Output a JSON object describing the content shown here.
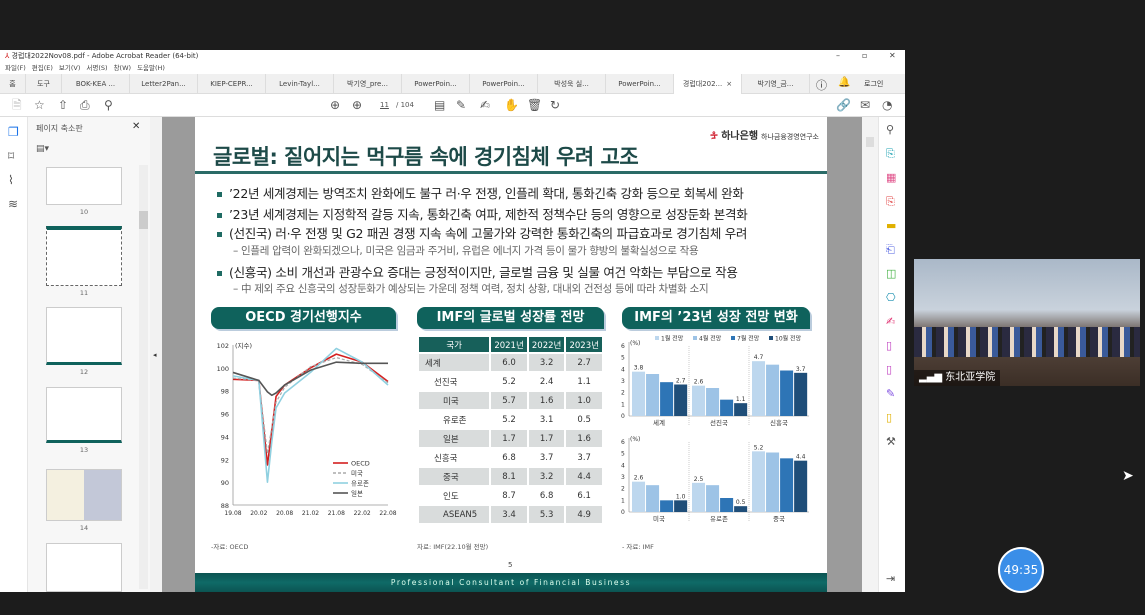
{
  "window": {
    "title": "경럽대2022Nov08.pdf - Adobe Acrobat Reader (64-bit)",
    "controls": [
      "–",
      "▫",
      "✕"
    ]
  },
  "menu": [
    "파일(F)",
    "편집(E)",
    "보기(V)",
    "서명(S)",
    "창(W)",
    "도움말(H)"
  ],
  "tabs": {
    "home": "홈",
    "tools": "도구",
    "docs": [
      "BOK-KEA ...",
      "Letter2Pan...",
      "KIEP-CEPR...",
      "Levin-Tayl...",
      "박기영_pre...",
      "PowerPoin...",
      "PowerPoin...",
      "박성욱 실...",
      "PowerPoin...",
      "경럽대202...",
      "박기영_금..."
    ],
    "active_index": 9,
    "close": "×",
    "login": "로그인"
  },
  "toolbar": {
    "current_page": "11",
    "total_pages": "/ 104"
  },
  "thumbnails": {
    "title": "페이지 축소판",
    "close": "✕",
    "pages": [
      "10",
      "11",
      "12",
      "13",
      "14"
    ],
    "selected": "11"
  },
  "slide": {
    "logo": "하나은행",
    "logo_sub": "하나금융경영연구소",
    "title": "글로벌: 짙어지는 먹구름 속에 경기침체 우려 고조",
    "bullets": [
      {
        "text": "’22년 세계경제는 방역조치 완화에도 불구 러·우 전쟁, 인플레 확대, 통화긴축 강화 등으로 회복세 완화",
        "sub": false
      },
      {
        "text": "’23년 세계경제는 지정학적 갈등 지속, 통화긴축 여파, 제한적 정책수단 등의 영향으로 성장둔화 본격화",
        "sub": false
      },
      {
        "text": "(선진국) 러·우 전쟁 및 G2 패권 경쟁 지속 속에 고물가와 강력한 통화긴축의 파급효과로 경기침체 우려",
        "sub": false
      },
      {
        "text": "– 인플레 압력이 완화되겠으나, 미국은 임금과 주거비, 유럽은 에너지 가격 등이 물가 향방의 불확실성으로 작용",
        "sub": true
      },
      {
        "text": "(신흥국) 소비 개선과 관광수요 증대는 긍정적이지만, 글로벌 금융 및 실물 여건 악화는 부담으로 작용",
        "sub": false
      },
      {
        "text": "– 中 제외 주요 신흥국의 성장둔화가 예상되는 가운데 정책 여력, 정치 상황, 대내외 건전성 등에 따라 차별화 소지",
        "sub": true
      }
    ],
    "sections": [
      "OECD 경기선행지수",
      "IMF의 글로벌 성장률 전망",
      "IMF의 ’23년 성장 전망 변화"
    ],
    "sources": [
      "-자료: OECD",
      "자료: IMF(22.10월 전망)",
      "- 자료: IMF"
    ],
    "table": {
      "headers": [
        "국가",
        "2021년",
        "2022년",
        "2023년"
      ],
      "rows": [
        [
          "세계",
          "6.0",
          "3.2",
          "2.7"
        ],
        [
          "선진국",
          "5.2",
          "2.4",
          "1.1"
        ],
        [
          "미국",
          "5.7",
          "1.6",
          "1.0"
        ],
        [
          "유로존",
          "5.2",
          "3.1",
          "0.5"
        ],
        [
          "일본",
          "1.7",
          "1.7",
          "1.6"
        ],
        [
          "신흥국",
          "6.8",
          "3.7",
          "3.7"
        ],
        [
          "중국",
          "8.1",
          "3.2",
          "4.4"
        ],
        [
          "인도",
          "8.7",
          "6.8",
          "6.1"
        ],
        [
          "ASEAN5",
          "3.4",
          "5.3",
          "4.9"
        ]
      ]
    },
    "page_number": "5",
    "footer": "Professional Consultant of Financial Business"
  },
  "chart_data": [
    {
      "type": "line",
      "ylabel": "(지수)",
      "ylim": [
        88,
        102
      ],
      "yticks": [
        88,
        90,
        92,
        94,
        96,
        98,
        100,
        102
      ],
      "xticks": [
        "19.08",
        "20.02",
        "20.08",
        "21.02",
        "21.08",
        "22.02",
        "22.08"
      ],
      "x": [
        "19.08",
        "20.02",
        "20.04",
        "20.05",
        "20.06",
        "20.08",
        "21.02",
        "21.08",
        "22.02",
        "22.08"
      ],
      "series": [
        {
          "name": "OECD",
          "color": "#d42020",
          "dash": false,
          "values": [
            99.0,
            98.9,
            91.5,
            94.5,
            97.5,
            98.5,
            100.0,
            101.2,
            100.5,
            98.8
          ]
        },
        {
          "name": "미국",
          "color": "#aaaaaa",
          "dash": true,
          "values": [
            99.1,
            98.9,
            92.5,
            94.8,
            97.0,
            98.3,
            100.1,
            100.9,
            100.3,
            98.7
          ]
        },
        {
          "name": "유로존",
          "color": "#8fd0e0",
          "dash": false,
          "values": [
            99.3,
            98.9,
            90.0,
            93.5,
            96.5,
            97.8,
            99.6,
            101.7,
            100.5,
            98.5
          ]
        },
        {
          "name": "일본",
          "color": "#555555",
          "dash": false,
          "values": [
            99.6,
            98.9,
            97.9,
            97.6,
            97.8,
            98.5,
            99.8,
            100.5,
            100.4,
            100.4
          ]
        }
      ]
    },
    {
      "type": "bar",
      "ylabel": "(%)",
      "ylim": [
        0,
        6
      ],
      "categories": [
        "세계",
        "선진국",
        "신흥국"
      ],
      "series": [
        {
          "name": "1월 전망",
          "color": "#bdd7ee",
          "values": [
            3.8,
            2.6,
            4.7
          ]
        },
        {
          "name": "4월 전망",
          "color": "#9dc3e6",
          "values": [
            3.6,
            2.4,
            4.4
          ]
        },
        {
          "name": "7월 전망",
          "color": "#2e75b6",
          "values": [
            2.9,
            1.4,
            3.9
          ]
        },
        {
          "name": "10월 전망",
          "color": "#1f4e79",
          "values": [
            2.7,
            1.1,
            3.7
          ]
        }
      ],
      "labels": [
        [
          "3.8",
          null,
          null,
          "2.7"
        ],
        [
          "2.6",
          null,
          null,
          "1.1"
        ],
        [
          "4.7",
          null,
          null,
          "3.7"
        ]
      ]
    },
    {
      "type": "bar",
      "ylabel": "(%)",
      "ylim": [
        0,
        6
      ],
      "categories": [
        "미국",
        "유로존",
        "중국"
      ],
      "series": [
        {
          "name": "1월 전망",
          "color": "#bdd7ee",
          "values": [
            2.6,
            2.5,
            5.2
          ]
        },
        {
          "name": "4월 전망",
          "color": "#9dc3e6",
          "values": [
            2.3,
            2.3,
            5.1
          ]
        },
        {
          "name": "7월 전망",
          "color": "#2e75b6",
          "values": [
            1.0,
            1.2,
            4.6
          ]
        },
        {
          "name": "10월 전망",
          "color": "#1f4e79",
          "values": [
            1.0,
            0.5,
            4.4
          ]
        }
      ],
      "labels": [
        [
          "2.6",
          null,
          null,
          "1.0"
        ],
        [
          "2.5",
          null,
          null,
          "0.5"
        ],
        [
          "5.2",
          null,
          null,
          "4.4"
        ]
      ]
    }
  ],
  "video": {
    "label": "东北亚学院"
  },
  "timer": "49:35"
}
